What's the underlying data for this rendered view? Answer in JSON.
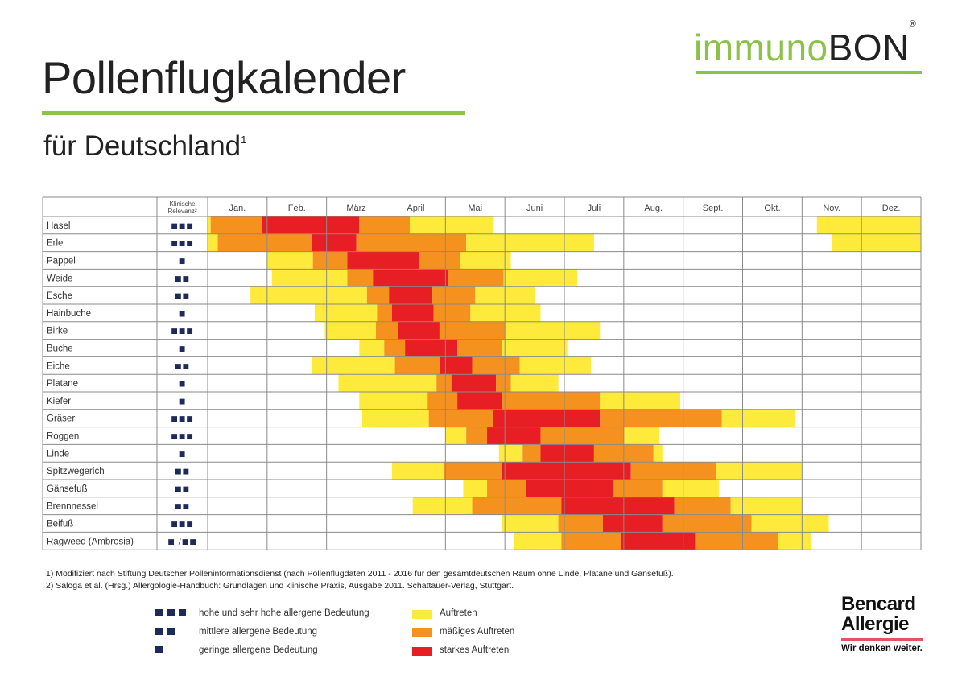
{
  "header": {
    "title": "Pollenflugkalender",
    "subtitle": "für Deutschland",
    "subtitle_sup": "1",
    "brand_light": "immuno",
    "brand_dark": "BON",
    "brand_mark": "®"
  },
  "colors": {
    "accent_green": "#8cc14a",
    "auftreten": "#fdea3a",
    "maessig": "#f5921f",
    "stark": "#e81e25",
    "relevance_square": "#1e2a5a"
  },
  "chart_data": {
    "type": "table",
    "title": "Pollenflugkalender für Deutschland",
    "relevance_header": [
      "Klinische",
      "Relevanz²"
    ],
    "months": [
      "Jan.",
      "Feb.",
      "März",
      "April",
      "Mai",
      "Juni",
      "Juli",
      "Aug.",
      "Sept.",
      "Okt.",
      "Nov.",
      "Dez."
    ],
    "x_unit": "months from start of January (0–12)",
    "levels": {
      "1": "Auftreten",
      "2": "mäßiges Auftreten",
      "3": "starkes Auftreten"
    },
    "rows": [
      {
        "name": "Hasel",
        "relevance": "■■■",
        "segments": [
          [
            0.0,
            0.05,
            1
          ],
          [
            0.05,
            0.92,
            2
          ],
          [
            0.92,
            2.55,
            3
          ],
          [
            2.55,
            3.4,
            2
          ],
          [
            3.4,
            4.8,
            1
          ],
          [
            10.25,
            12.0,
            1
          ]
        ]
      },
      {
        "name": "Erle",
        "relevance": "■■■",
        "segments": [
          [
            0.0,
            0.17,
            1
          ],
          [
            0.17,
            1.75,
            2
          ],
          [
            1.75,
            2.5,
            3
          ],
          [
            2.5,
            4.35,
            2
          ],
          [
            4.35,
            6.5,
            1
          ],
          [
            10.5,
            12.0,
            1
          ]
        ]
      },
      {
        "name": "Pappel",
        "relevance": "■",
        "segments": [
          [
            1.0,
            1.77,
            1
          ],
          [
            1.77,
            2.35,
            2
          ],
          [
            2.35,
            3.55,
            3
          ],
          [
            3.55,
            4.25,
            2
          ],
          [
            4.25,
            5.1,
            1
          ]
        ]
      },
      {
        "name": "Weide",
        "relevance": "■■",
        "segments": [
          [
            1.08,
            2.35,
            1
          ],
          [
            2.35,
            2.78,
            2
          ],
          [
            2.78,
            4.05,
            3
          ],
          [
            4.05,
            4.98,
            2
          ],
          [
            4.98,
            6.22,
            1
          ]
        ]
      },
      {
        "name": "Esche",
        "relevance": "■■",
        "segments": [
          [
            0.72,
            2.68,
            1
          ],
          [
            2.68,
            3.05,
            2
          ],
          [
            3.05,
            3.78,
            3
          ],
          [
            3.78,
            4.5,
            2
          ],
          [
            4.5,
            5.5,
            1
          ]
        ]
      },
      {
        "name": "Hainbuche",
        "relevance": "■",
        "segments": [
          [
            1.8,
            2.85,
            1
          ],
          [
            2.85,
            3.1,
            2
          ],
          [
            3.1,
            3.8,
            3
          ],
          [
            3.8,
            4.42,
            2
          ],
          [
            4.42,
            5.6,
            1
          ]
        ]
      },
      {
        "name": "Birke",
        "relevance": "■■■",
        "segments": [
          [
            1.97,
            2.83,
            1
          ],
          [
            2.83,
            3.2,
            2
          ],
          [
            3.2,
            3.9,
            3
          ],
          [
            3.9,
            5.0,
            2
          ],
          [
            5.0,
            6.6,
            1
          ]
        ]
      },
      {
        "name": "Buche",
        "relevance": "■",
        "segments": [
          [
            2.55,
            2.97,
            1
          ],
          [
            2.97,
            3.32,
            2
          ],
          [
            3.32,
            4.2,
            3
          ],
          [
            4.2,
            4.95,
            2
          ],
          [
            4.95,
            6.05,
            1
          ]
        ]
      },
      {
        "name": "Eiche",
        "relevance": "■■",
        "segments": [
          [
            1.75,
            3.15,
            1
          ],
          [
            3.15,
            3.9,
            2
          ],
          [
            3.9,
            4.45,
            3
          ],
          [
            4.45,
            5.25,
            2
          ],
          [
            5.25,
            6.45,
            1
          ]
        ]
      },
      {
        "name": "Platane",
        "relevance": "■",
        "segments": [
          [
            2.2,
            3.85,
            1
          ],
          [
            3.85,
            4.1,
            2
          ],
          [
            4.1,
            4.85,
            3
          ],
          [
            4.85,
            5.1,
            2
          ],
          [
            5.1,
            5.9,
            1
          ]
        ]
      },
      {
        "name": "Kiefer",
        "relevance": "■",
        "segments": [
          [
            2.55,
            3.7,
            1
          ],
          [
            3.7,
            4.2,
            2
          ],
          [
            4.2,
            4.95,
            3
          ],
          [
            4.95,
            6.6,
            2
          ],
          [
            6.6,
            7.95,
            1
          ]
        ]
      },
      {
        "name": "Gräser",
        "relevance": "■■■",
        "segments": [
          [
            2.6,
            3.72,
            1
          ],
          [
            3.72,
            4.8,
            2
          ],
          [
            4.8,
            6.6,
            3
          ],
          [
            6.6,
            8.65,
            2
          ],
          [
            8.65,
            9.88,
            1
          ]
        ]
      },
      {
        "name": "Roggen",
        "relevance": "■■■",
        "segments": [
          [
            4.0,
            4.35,
            1
          ],
          [
            4.35,
            4.7,
            2
          ],
          [
            4.7,
            5.6,
            3
          ],
          [
            5.6,
            7.0,
            2
          ],
          [
            7.0,
            7.6,
            1
          ]
        ]
      },
      {
        "name": "Linde",
        "relevance": "■",
        "segments": [
          [
            4.9,
            5.3,
            1
          ],
          [
            5.3,
            5.6,
            2
          ],
          [
            5.6,
            6.5,
            3
          ],
          [
            6.5,
            7.5,
            2
          ],
          [
            7.5,
            7.65,
            1
          ]
        ]
      },
      {
        "name": "Spitzwegerich",
        "relevance": "■■",
        "segments": [
          [
            3.1,
            3.97,
            1
          ],
          [
            3.97,
            4.95,
            2
          ],
          [
            4.95,
            7.12,
            3
          ],
          [
            7.12,
            8.55,
            2
          ],
          [
            8.55,
            10.0,
            1
          ]
        ]
      },
      {
        "name": "Gänsefuß",
        "relevance": "■■",
        "segments": [
          [
            4.3,
            4.7,
            1
          ],
          [
            4.7,
            5.35,
            2
          ],
          [
            5.35,
            6.82,
            3
          ],
          [
            6.82,
            7.65,
            2
          ],
          [
            7.65,
            8.6,
            1
          ]
        ]
      },
      {
        "name": "Brennnessel",
        "relevance": "■■",
        "segments": [
          [
            3.45,
            4.45,
            1
          ],
          [
            4.45,
            5.95,
            2
          ],
          [
            5.95,
            7.85,
            3
          ],
          [
            7.85,
            8.8,
            2
          ],
          [
            8.8,
            10.0,
            1
          ]
        ]
      },
      {
        "name": "Beifuß",
        "relevance": "■■■",
        "segments": [
          [
            4.95,
            5.9,
            1
          ],
          [
            5.9,
            6.65,
            2
          ],
          [
            6.65,
            7.65,
            3
          ],
          [
            7.65,
            9.15,
            2
          ],
          [
            9.15,
            10.45,
            1
          ]
        ]
      },
      {
        "name": "Ragweed (Ambrosia)",
        "relevance": "■ /■■",
        "segments": [
          [
            5.15,
            5.95,
            1
          ],
          [
            5.95,
            6.95,
            2
          ],
          [
            6.95,
            8.2,
            3
          ],
          [
            8.2,
            9.6,
            2
          ],
          [
            9.6,
            10.15,
            1
          ]
        ]
      }
    ]
  },
  "footnotes": [
    "1) Modifiziert nach Stiftung Deutscher Polleninformationsdienst (nach Pollenflugdaten 2011 - 2016 für den gesamtdeutschen Raum ohne Linde, Platane und Gänsefuß).",
    "2) Saloga et al. (Hrsg.) Allergologie-Handbuch: Grundlagen und klinische Praxis, Ausgabe 2011. Schattauer-Verlag, Stuttgart."
  ],
  "legend": {
    "relevance": [
      {
        "count": 3,
        "label": "hohe und sehr hohe allergene Bedeutung"
      },
      {
        "count": 2,
        "label": "mittlere allergene Bedeutung"
      },
      {
        "count": 1,
        "label": "geringe allergene Bedeutung"
      }
    ],
    "intensity": [
      {
        "level": 1,
        "label": "Auftreten"
      },
      {
        "level": 2,
        "label": "mäßiges Auftreten"
      },
      {
        "level": 3,
        "label": "starkes Auftreten"
      }
    ]
  },
  "bencard": {
    "line1": "Bencard",
    "line2": "Allergie",
    "tagline": "Wir denken weiter."
  }
}
